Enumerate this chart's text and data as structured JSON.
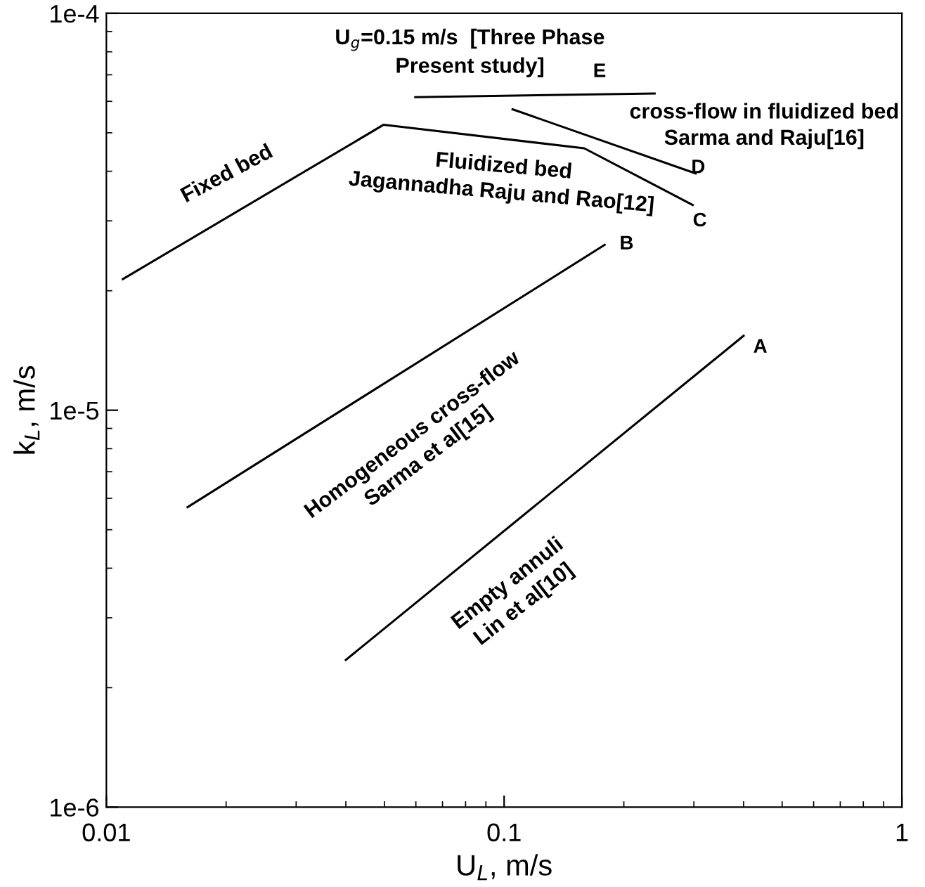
{
  "chart_data": {
    "type": "line",
    "xlabel": "U$_{L}$, m/s",
    "ylabel": "k$_{L}$, m/s",
    "log": "xy",
    "xlim": [
      0.01,
      1
    ],
    "xticks": [
      0.01,
      0.1,
      1
    ],
    "ylim": [
      1e-06,
      0.0001
    ],
    "yticks": [
      {
        "value": 1e-06,
        "label": "1e-6"
      },
      {
        "value": 1e-05,
        "label": "1e-5"
      },
      {
        "value": 0.0001,
        "label": "1e-4"
      }
    ],
    "grid": false,
    "legend": false,
    "marker": "none",
    "line_style": "solid",
    "series": [
      {
        "color": "#000000",
        "x": [
          0.04,
          0.4
        ],
        "values": [
          2.35e-06,
          1.54e-05
        ]
      },
      {
        "color": "#000000",
        "x": [
          0.016,
          0.179
        ],
        "values": [
          5.7e-06,
          2.61e-05
        ]
      },
      {
        "color": "#000000",
        "x": [
          0.011,
          0.0498,
          0.159,
          0.298
        ],
        "values": [
          2.14e-05,
          5.24e-05,
          4.57e-05,
          3.29e-05
        ]
      },
      {
        "color": "#000000",
        "x": [
          0.105,
          0.303
        ],
        "values": [
          5.73e-05,
          3.95e-05
        ]
      },
      {
        "color": "#000000",
        "x": [
          0.0598,
          0.239
        ],
        "values": [
          6.15e-05,
          6.28e-05
        ]
      }
    ],
    "annotations": [
      "U$_{g}$=0.15 m/s  [Three Phase\nPresent study]",
      "E",
      "cross-flow in fluidized bed\nSarma and Raju[16]",
      "D",
      "Fluidized bed\nJagannadha Raju and Rao[12]",
      "C",
      "Fixed bed",
      "B",
      "Homogeneous cross-flow\nSarma et al[15]",
      "A",
      "Empty annuli\nLin et al[10]"
    ]
  }
}
